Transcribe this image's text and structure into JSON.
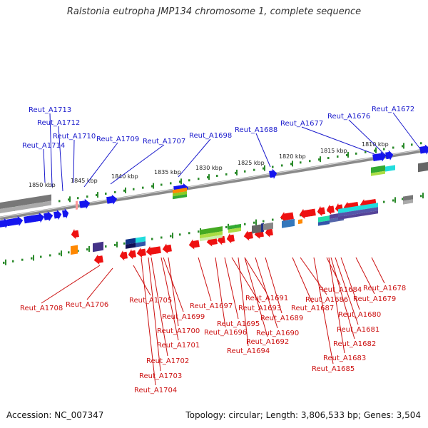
{
  "title": "Ralstonia eutropha JMP134 chromosome 1, complete sequence",
  "footer": {
    "accession": "Accession: NC_007347",
    "summary": "Topology: circular; Length: 3,806,533 bp; Genes: 3,504"
  },
  "colors": {
    "forward_gene": "#1515ee",
    "reverse_gene": "#ee1111",
    "label_forward": "#1a1acc",
    "label_reverse": "#cc1111",
    "backbone": "#777777",
    "tick": "#2a8a2a"
  },
  "scale": [
    "1850 kbp",
    "1845 kbp",
    "1840 kbp",
    "1835 kbp",
    "1830 kbp",
    "1825 kbp",
    "1820 kbp",
    "1815 kbp",
    "1810 kbp"
  ],
  "top_labels": [
    "Reut_A1713",
    "Reut_A1712",
    "Reut_A1710",
    "Reut_A1714",
    "Reut_A1709",
    "Reut_A1707",
    "Reut_A1698",
    "Reut_A1688",
    "Reut_A1677",
    "Reut_A1676",
    "Reut_A1672"
  ],
  "bottom_labels": [
    "Reut_A1708",
    "Reut_A1706",
    "Reut_A1705",
    "Reut_A1697",
    "Reut_A1699",
    "Reut_A1700",
    "Reut_A1701",
    "Reut_A1702",
    "Reut_A1703",
    "Reut_A1704",
    "Reut_A1696",
    "Reut_A1695",
    "Reut_A1694",
    "Reut_A1693",
    "Reut_A1692",
    "Reut_A1691",
    "Reut_A1690",
    "Reut_A1689",
    "Reut_A1687",
    "Reut_A1686",
    "Reut_A1685",
    "Reut_A1684",
    "Reut_A1683",
    "Reut_A1682",
    "Reut_A1681",
    "Reut_A1680",
    "Reut_A1679",
    "Reut_A1678"
  ]
}
